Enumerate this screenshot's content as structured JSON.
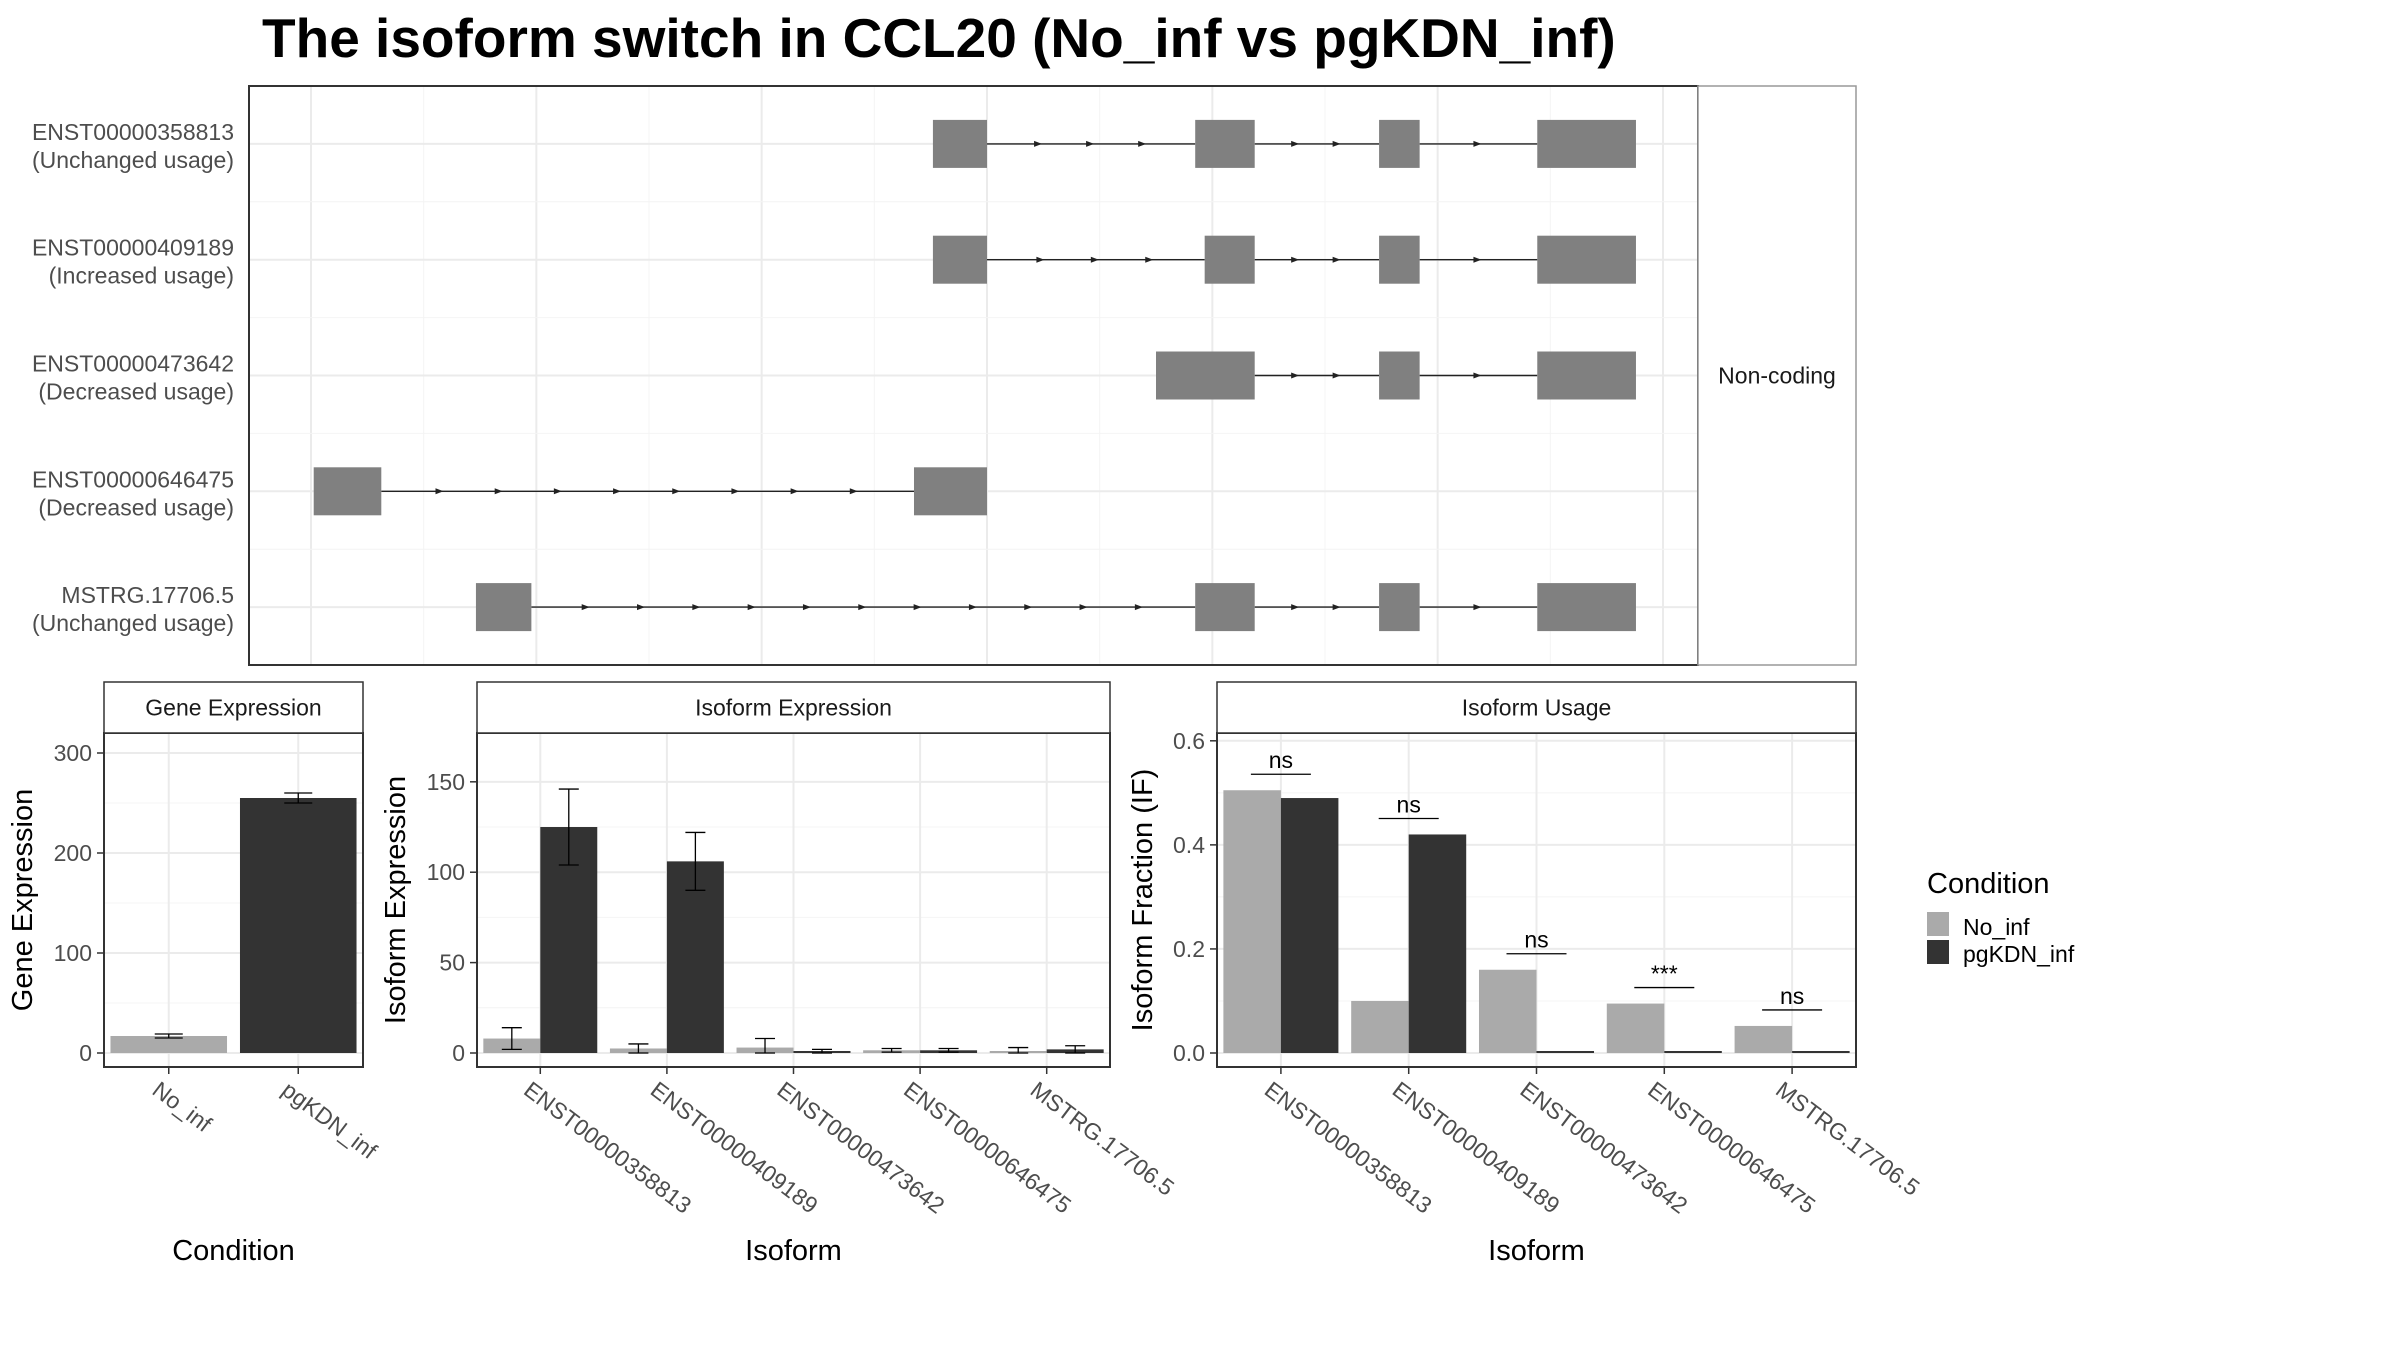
{
  "title": "The isoform switch in CCL20 (No_inf vs pgKDN_inf)",
  "colors": {
    "exon": "#808080",
    "no_inf": "#aaaaaa",
    "pgkdn_inf": "#333333",
    "grid": "#ebebeb",
    "strip_border": "#999999",
    "panel_border": "#333333",
    "text": "#4d4d4d"
  },
  "legend": {
    "title": "Condition",
    "entries": [
      "No_inf",
      "pgKDN_inf"
    ]
  },
  "structure": {
    "strip_label": "Non-coding",
    "genomic_range": [
      0,
      100
    ],
    "transcripts": [
      {
        "id": "ENST00000358813",
        "usage": "(Unchanged usage)",
        "exons": [
          [
            46,
            50
          ],
          [
            65.4,
            69.8
          ],
          [
            79,
            82
          ],
          [
            90.7,
            98
          ]
        ]
      },
      {
        "id": "ENST00000409189",
        "usage": "(Increased usage)",
        "exons": [
          [
            46,
            50
          ],
          [
            66.1,
            69.8
          ],
          [
            79,
            82
          ],
          [
            90.7,
            98
          ]
        ]
      },
      {
        "id": "ENST00000473642",
        "usage": "(Decreased usage)",
        "exons": [
          [
            62.5,
            69.8
          ],
          [
            79,
            82
          ],
          [
            90.7,
            98
          ]
        ]
      },
      {
        "id": "ENST00000646475",
        "usage": "(Decreased usage)",
        "exons": [
          [
            0.2,
            5.2
          ],
          [
            44.6,
            50
          ]
        ]
      },
      {
        "id": "MSTRG.17706.5",
        "usage": "(Unchanged usage)",
        "exons": [
          [
            12.2,
            16.3
          ],
          [
            65.4,
            69.8
          ],
          [
            79,
            82
          ],
          [
            90.7,
            98
          ]
        ]
      }
    ]
  },
  "chart_data": [
    {
      "type": "bar",
      "strip": "Gene Expression",
      "xlabel": "Condition",
      "ylabel": "Gene Expression",
      "ylim": [
        0,
        320
      ],
      "yticks": [
        0,
        100,
        200,
        300
      ],
      "categories": [
        "No_inf",
        "pgKDN_inf"
      ],
      "values": [
        17,
        255
      ],
      "errors": [
        2,
        5
      ]
    },
    {
      "type": "bar",
      "strip": "Isoform Expression",
      "xlabel": "Isoform",
      "ylabel": "Isoform Expression",
      "ylim": [
        0,
        177
      ],
      "yticks": [
        0,
        50,
        100,
        150
      ],
      "categories": [
        "ENST00000358813",
        "ENST00000409189",
        "ENST00000473642",
        "ENST00000646475",
        "MSTRG.17706.5"
      ],
      "series": [
        {
          "name": "No_inf",
          "values": [
            8,
            2.5,
            3,
            1.5,
            1
          ],
          "errors": [
            6,
            2.5,
            5,
            1,
            2
          ]
        },
        {
          "name": "pgKDN_inf",
          "values": [
            125,
            106,
            1,
            1.5,
            2
          ],
          "errors": [
            21,
            16,
            1,
            1,
            2
          ]
        }
      ]
    },
    {
      "type": "bar",
      "strip": "Isoform Usage",
      "xlabel": "Isoform",
      "ylabel": "Isoform Fraction (IF)",
      "ylim": [
        0,
        0.615
      ],
      "yticks": [
        "0.0",
        "0.2",
        "0.4",
        "0.6"
      ],
      "categories": [
        "ENST00000358813",
        "ENST00000409189",
        "ENST00000473642",
        "ENST00000646475",
        "MSTRG.17706.5"
      ],
      "series": [
        {
          "name": "No_inf",
          "values": [
            0.505,
            0.1,
            0.16,
            0.095,
            0.052
          ]
        },
        {
          "name": "pgKDN_inf",
          "values": [
            0.49,
            0.42,
            0.002,
            0.003,
            0.003
          ]
        }
      ],
      "significance": [
        "ns",
        "ns",
        "ns",
        "***",
        "ns"
      ]
    }
  ]
}
